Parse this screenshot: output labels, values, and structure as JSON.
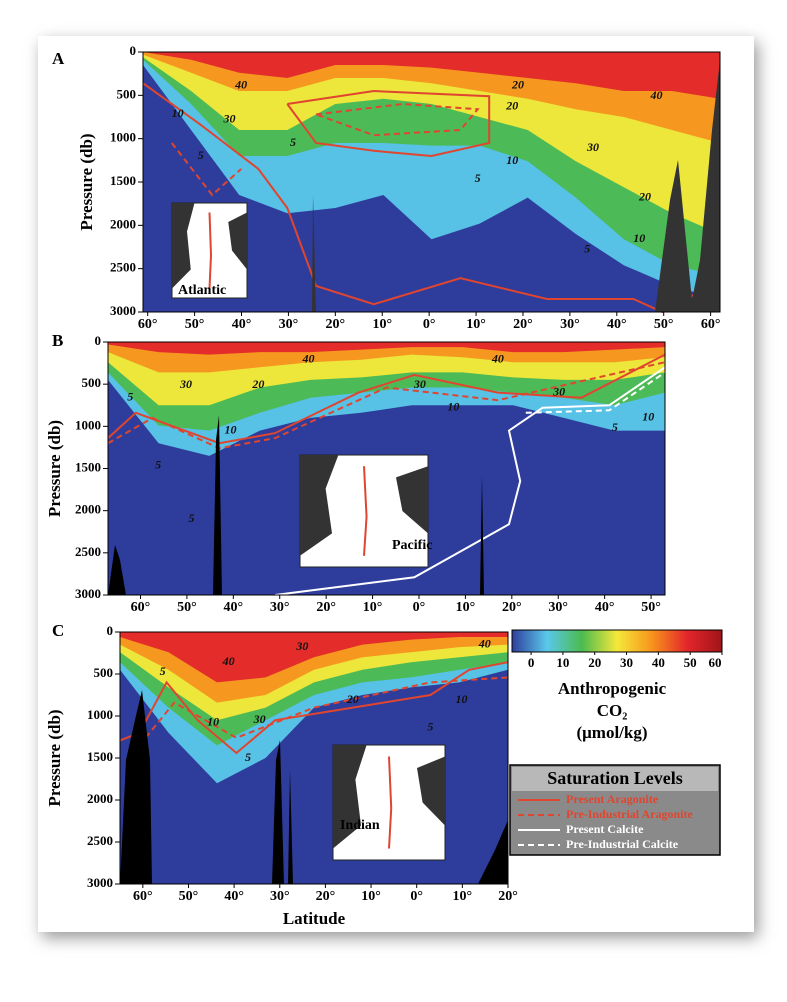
{
  "chart_data": [
    {
      "type": "section",
      "panel": "A",
      "ylabel": "Pressure (db)",
      "ylim": [
        0,
        3000
      ],
      "yticks": [
        0,
        500,
        1000,
        1500,
        2000,
        2500,
        3000
      ],
      "xlim": [
        -61,
        62
      ],
      "xticks": [
        {
          "value": -60,
          "label": "60°"
        },
        {
          "value": -50,
          "label": "50°"
        },
        {
          "value": -40,
          "label": "40°"
        },
        {
          "value": -30,
          "label": "30°"
        },
        {
          "value": -20,
          "label": "20°"
        },
        {
          "value": -10,
          "label": "10°"
        },
        {
          "value": 0,
          "label": "0°"
        },
        {
          "value": 10,
          "label": "10°"
        },
        {
          "value": 20,
          "label": "20°"
        },
        {
          "value": 30,
          "label": "30°"
        },
        {
          "value": 40,
          "label": "40°"
        },
        {
          "value": 50,
          "label": "50°"
        },
        {
          "value": 60,
          "label": "60°"
        }
      ],
      "contour_labels": [
        "40",
        "30",
        "10",
        "5",
        "20",
        "20",
        "10",
        "5",
        "30",
        "20",
        "5",
        "10",
        "40",
        "5"
      ],
      "inset": "Atlantic"
    },
    {
      "type": "section",
      "panel": "B",
      "ylabel": "Pressure (db)",
      "ylim": [
        0,
        3000
      ],
      "yticks": [
        0,
        500,
        1000,
        1500,
        2000,
        2500,
        3000
      ],
      "xlim": [
        -67,
        53
      ],
      "xticks": [
        {
          "value": -60,
          "label": "60°"
        },
        {
          "value": -50,
          "label": "50°"
        },
        {
          "value": -40,
          "label": "40°"
        },
        {
          "value": -30,
          "label": "30°"
        },
        {
          "value": -20,
          "label": "20°"
        },
        {
          "value": -10,
          "label": "10°"
        },
        {
          "value": 0,
          "label": "0°"
        },
        {
          "value": 10,
          "label": "10°"
        },
        {
          "value": 20,
          "label": "20°"
        },
        {
          "value": 30,
          "label": "30°"
        },
        {
          "value": 40,
          "label": "40°"
        },
        {
          "value": 50,
          "label": "50°"
        }
      ],
      "contour_labels": [
        "40",
        "30",
        "40",
        "30",
        "20",
        "10",
        "10",
        "10",
        "5",
        "5",
        "5",
        "5",
        "30"
      ],
      "inset": "Pacific"
    },
    {
      "type": "section",
      "panel": "C",
      "ylabel": "Pressure (db)",
      "xlabel": "Latitude",
      "ylim": [
        0,
        3000
      ],
      "yticks": [
        0,
        500,
        1000,
        1500,
        2000,
        2500,
        3000
      ],
      "xlim": [
        -65,
        20
      ],
      "xticks": [
        {
          "value": -60,
          "label": "60°"
        },
        {
          "value": -50,
          "label": "50°"
        },
        {
          "value": -40,
          "label": "40°"
        },
        {
          "value": -30,
          "label": "30°"
        },
        {
          "value": -20,
          "label": "20°"
        },
        {
          "value": -10,
          "label": "10°"
        },
        {
          "value": 0,
          "label": "0°"
        },
        {
          "value": 10,
          "label": "10°"
        },
        {
          "value": 20,
          "label": "20°"
        }
      ],
      "contour_labels": [
        "40",
        "30",
        "30",
        "40",
        "20",
        "10",
        "10",
        "5",
        "5",
        "5"
      ],
      "inset": "Indian"
    }
  ],
  "colorbar": {
    "title": [
      "Anthropogenic",
      "CO₂",
      "(μmol/kg)"
    ],
    "lim": [
      -6,
      60
    ],
    "ticks": [
      0,
      10,
      20,
      30,
      40,
      50,
      60
    ],
    "colors": [
      "#2e3d9c",
      "#5ac8ea",
      "#4cbb4f",
      "#f5e83a",
      "#f7941d",
      "#e3262b",
      "#a01418"
    ]
  },
  "legend": {
    "title": "Saturation Levels",
    "entries": [
      {
        "name": "Present Aragonite",
        "color": "#e0452f",
        "dashed": false
      },
      {
        "name": "Pre-Industrial Aragonite",
        "color": "#e0452f",
        "dashed": true
      },
      {
        "name": "Present Calcite",
        "color": "#ffffff",
        "dashed": false
      },
      {
        "name": "Pre-Industrial Calcite",
        "color": "#ffffff",
        "dashed": true
      }
    ]
  }
}
